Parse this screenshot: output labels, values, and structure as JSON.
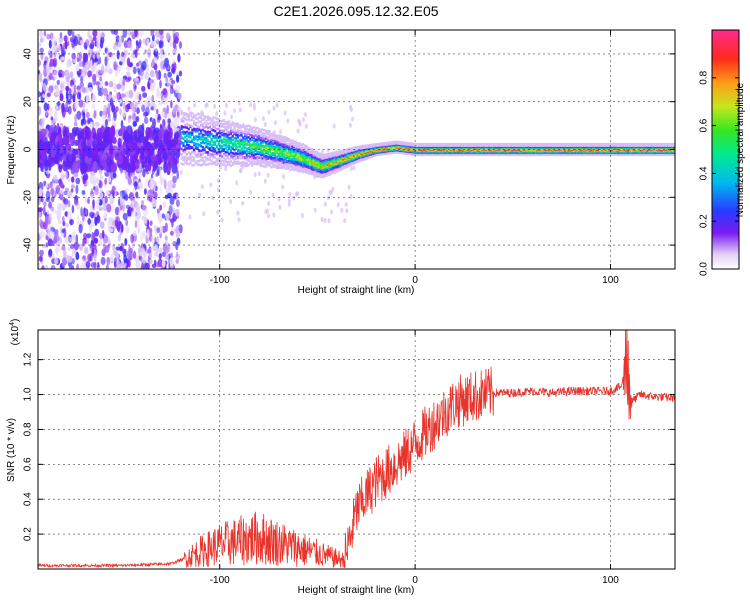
{
  "chart_data": [
    {
      "type": "heatmap",
      "title": "C2E1.2026.095.12.32.E05",
      "xlabel": "Height of straight line (km)",
      "ylabel": "Frequency (Hz)",
      "xlim": [
        -193,
        133
      ],
      "ylim": [
        -50,
        50
      ],
      "xticks": [
        -100,
        0,
        100
      ],
      "xtick_labels": [
        "-100",
        "0",
        "100"
      ],
      "yticks": [
        -40,
        -20,
        0,
        20,
        40
      ],
      "ytick_labels": [
        "-40",
        "-20",
        "0",
        "20",
        "40"
      ],
      "grid": true,
      "colorbar": {
        "label": "Normalized spectral amplitude",
        "range": [
          0,
          1
        ],
        "ticks": [
          0.0,
          0.2,
          0.4,
          0.6,
          0.8
        ],
        "tick_labels": [
          "0.0",
          "0.2",
          "0.4",
          "0.6",
          "0.8"
        ]
      },
      "ridge": {
        "x": [
          -120,
          -100,
          -80,
          -60,
          -48,
          -40,
          -30,
          -20,
          -10,
          0,
          50,
          100,
          133
        ],
        "frequency_hz": [
          5,
          3,
          1,
          -3,
          -7,
          -5,
          -2,
          0,
          1,
          0,
          0,
          0,
          0
        ]
      },
      "noise_region_x": [
        -193,
        -120
      ]
    },
    {
      "type": "line",
      "xlabel": "Height of straight line (km)",
      "ylabel": "SNR (10 * v/v)",
      "y_multiplier": "(x10",
      "y_multiplier_exp": "4",
      "y_multiplier_close": ")",
      "xlim": [
        -193,
        133
      ],
      "ylim": [
        0,
        1.37
      ],
      "xticks": [
        -100,
        0,
        100
      ],
      "xtick_labels": [
        "-100",
        "0",
        "100"
      ],
      "yticks": [
        0.2,
        0.4,
        0.6,
        0.8,
        1.0,
        1.2
      ],
      "ytick_labels": [
        "0.2",
        "0.4",
        "0.6",
        "0.8",
        "1.0",
        "1.2"
      ],
      "grid": true,
      "series": [
        {
          "name": "SNR",
          "color": "#e8342c",
          "x": [
            -193,
            -150,
            -125,
            -118,
            -110,
            -100,
            -90,
            -80,
            -70,
            -60,
            -50,
            -40,
            -36,
            -30,
            -25,
            -20,
            -10,
            -5,
            0,
            10,
            20,
            30,
            40,
            50,
            60,
            70,
            80,
            90,
            100,
            106,
            108,
            110,
            115,
            120,
            133
          ],
          "y": [
            0.02,
            0.02,
            0.03,
            0.06,
            0.1,
            0.14,
            0.16,
            0.18,
            0.15,
            0.12,
            0.09,
            0.06,
            0.05,
            0.33,
            0.42,
            0.5,
            0.6,
            0.65,
            0.72,
            0.84,
            0.95,
            0.99,
            1.01,
            1.01,
            1.02,
            1.01,
            1.02,
            1.02,
            1.02,
            1.05,
            1.2,
            0.95,
            1.0,
            0.99,
            0.98
          ]
        }
      ]
    }
  ]
}
